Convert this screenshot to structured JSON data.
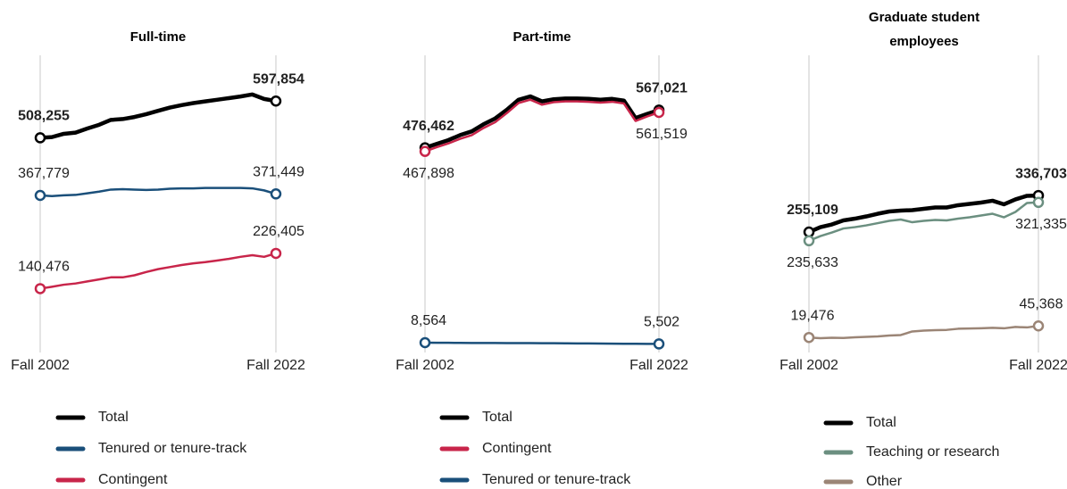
{
  "chart_data": [
    {
      "type": "line",
      "title": "Full-time",
      "categories": [
        "Fall 2002",
        null,
        null,
        null,
        null,
        null,
        null,
        null,
        null,
        null,
        null,
        null,
        null,
        null,
        null,
        null,
        null,
        null,
        null,
        null,
        "Fall 2022"
      ],
      "ylim": [
        0,
        655000
      ],
      "series": [
        {
          "name": "Total",
          "color": "#000000",
          "values": [
            508255,
            510000,
            518000,
            521000,
            531000,
            540000,
            552000,
            554000,
            559000,
            566000,
            574000,
            582000,
            588000,
            593000,
            597000,
            601000,
            605000,
            609000,
            614000,
            603000,
            597854
          ],
          "value_labels": [
            "508,255",
            null,
            null,
            null,
            null,
            null,
            null,
            null,
            null,
            null,
            null,
            null,
            null,
            null,
            null,
            null,
            null,
            null,
            null,
            null,
            "597,854"
          ]
        },
        {
          "name": "Tenured or tenure-track",
          "color": "#1a4f7a",
          "values": [
            367779,
            366000,
            368000,
            369000,
            373000,
            377000,
            382000,
            383000,
            382000,
            381000,
            382000,
            384000,
            385000,
            385000,
            386000,
            386000,
            386000,
            386000,
            385000,
            380000,
            371449
          ],
          "value_labels": [
            "367,779",
            null,
            null,
            null,
            null,
            null,
            null,
            null,
            null,
            null,
            null,
            null,
            null,
            null,
            null,
            null,
            null,
            null,
            null,
            null,
            "371,449"
          ]
        },
        {
          "name": "Contingent",
          "color": "#c8254a",
          "values": [
            140476,
            145000,
            150000,
            153000,
            158000,
            163000,
            168000,
            168000,
            173000,
            181000,
            188000,
            193000,
            198000,
            202000,
            205000,
            209000,
            213000,
            218000,
            222000,
            218000,
            226405
          ],
          "value_labels": [
            "140,476",
            null,
            null,
            null,
            null,
            null,
            null,
            null,
            null,
            null,
            null,
            null,
            null,
            null,
            null,
            null,
            null,
            null,
            null,
            null,
            "226,405"
          ]
        }
      ]
    },
    {
      "type": "line",
      "title": "Part-time",
      "categories": [
        "Fall 2002",
        null,
        null,
        null,
        null,
        null,
        null,
        null,
        null,
        null,
        null,
        null,
        null,
        null,
        null,
        null,
        null,
        null,
        null,
        null,
        "Fall 2022"
      ],
      "ylim": [
        0,
        645000
      ],
      "series": [
        {
          "name": "Total",
          "color": "#000000",
          "values": [
            476462,
            486000,
            495000,
            507000,
            516000,
            533000,
            547000,
            568000,
            592000,
            600000,
            588000,
            593000,
            595000,
            595000,
            594000,
            592000,
            594000,
            590000,
            548000,
            558000,
            567021
          ],
          "value_labels": [
            "476,462",
            null,
            null,
            null,
            null,
            null,
            null,
            null,
            null,
            null,
            null,
            null,
            null,
            null,
            null,
            null,
            null,
            null,
            null,
            null,
            "567,021"
          ]
        },
        {
          "name": "Contingent",
          "color": "#c8254a",
          "values": [
            467898,
            478000,
            487000,
            498000,
            507000,
            524000,
            538000,
            560000,
            584000,
            592000,
            580000,
            586000,
            588000,
            588000,
            587000,
            585000,
            587000,
            583000,
            541000,
            552000,
            561519
          ],
          "value_labels": [
            "467,898",
            null,
            null,
            null,
            null,
            null,
            null,
            null,
            null,
            null,
            null,
            null,
            null,
            null,
            null,
            null,
            null,
            null,
            null,
            null,
            "561,519"
          ]
        },
        {
          "name": "Tenured or tenure-track",
          "color": "#1a4f7a",
          "values": [
            8564,
            8400,
            8200,
            8000,
            7900,
            7800,
            7700,
            7600,
            7500,
            7400,
            7300,
            7100,
            7000,
            6800,
            6600,
            6400,
            6200,
            6000,
            5800,
            5600,
            5502
          ],
          "value_labels": [
            "8,564",
            null,
            null,
            null,
            null,
            null,
            null,
            null,
            null,
            null,
            null,
            null,
            null,
            null,
            null,
            null,
            null,
            null,
            null,
            null,
            "5,502"
          ]
        }
      ]
    },
    {
      "type": "line",
      "title": "Graduate student employees",
      "categories": [
        "Fall 2002",
        null,
        null,
        null,
        null,
        null,
        null,
        null,
        null,
        null,
        null,
        null,
        null,
        null,
        null,
        null,
        null,
        null,
        null,
        null,
        "Fall 2022"
      ],
      "ylim": [
        0,
        600000
      ],
      "series": [
        {
          "name": "Total",
          "color": "#000000",
          "values": [
            255109,
            266000,
            272000,
            281000,
            285000,
            290000,
            296000,
            301000,
            303000,
            304000,
            307000,
            310000,
            310000,
            315000,
            318000,
            321000,
            325000,
            317000,
            328000,
            336000,
            336703
          ],
          "value_labels": [
            "255,109",
            null,
            null,
            null,
            null,
            null,
            null,
            null,
            null,
            null,
            null,
            null,
            null,
            null,
            null,
            null,
            null,
            null,
            null,
            null,
            "336,703"
          ]
        },
        {
          "name": "Teaching or research",
          "color": "#6b8f80",
          "values": [
            235633,
            246000,
            254000,
            263000,
            266000,
            270000,
            275000,
            280000,
            283000,
            277000,
            280000,
            282000,
            281000,
            285000,
            288000,
            292000,
            296000,
            288000,
            300000,
            320000,
            321335
          ],
          "value_labels": [
            "235,633",
            null,
            null,
            null,
            null,
            null,
            null,
            null,
            null,
            null,
            null,
            null,
            null,
            null,
            null,
            null,
            null,
            null,
            null,
            null,
            "321,335"
          ]
        },
        {
          "name": "Other",
          "color": "#9b8576",
          "values": [
            19476,
            18000,
            19000,
            18500,
            20000,
            21000,
            22000,
            24000,
            25000,
            33000,
            35000,
            36000,
            36500,
            39000,
            39500,
            40000,
            41000,
            40000,
            43000,
            42000,
            45368
          ],
          "value_labels": [
            "19,476",
            null,
            null,
            null,
            null,
            null,
            null,
            null,
            null,
            null,
            null,
            null,
            null,
            null,
            null,
            null,
            null,
            null,
            null,
            null,
            "45,368"
          ]
        }
      ]
    }
  ]
}
